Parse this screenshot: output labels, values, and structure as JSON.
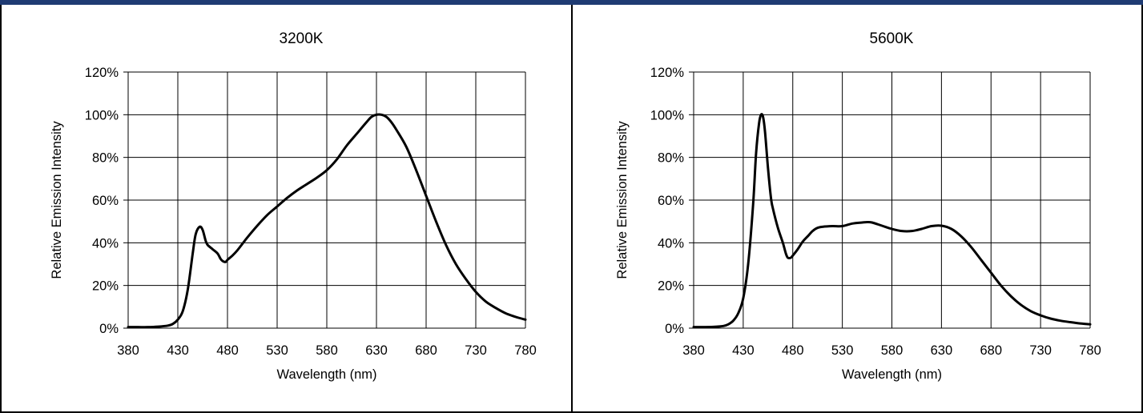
{
  "chart_data": [
    {
      "type": "line",
      "title": "3200K",
      "xlabel": "Wavelength (nm)",
      "ylabel": "Relative Emission Intensity",
      "xlim": [
        380,
        780
      ],
      "ylim": [
        0,
        1.2
      ],
      "xticks": [
        "380",
        "430",
        "480",
        "530",
        "580",
        "630",
        "680",
        "730",
        "780"
      ],
      "yticks": [
        "0%",
        "20%",
        "40%",
        "60%",
        "80%",
        "100%",
        "120%"
      ],
      "grid": true,
      "series": [
        {
          "x": [
            380,
            390,
            400,
            410,
            420,
            425,
            430,
            435,
            440,
            445,
            448,
            452,
            455,
            458,
            460,
            465,
            470,
            473,
            475,
            478,
            480,
            485,
            490,
            495,
            500,
            510,
            520,
            530,
            540,
            550,
            560,
            570,
            580,
            590,
            600,
            610,
            620,
            625,
            630,
            635,
            640,
            645,
            650,
            660,
            670,
            680,
            690,
            700,
            710,
            720,
            730,
            740,
            750,
            760,
            770,
            780
          ],
          "y": [
            0.005,
            0.005,
            0.005,
            0.007,
            0.012,
            0.02,
            0.04,
            0.08,
            0.18,
            0.35,
            0.44,
            0.475,
            0.46,
            0.41,
            0.39,
            0.37,
            0.35,
            0.325,
            0.315,
            0.31,
            0.32,
            0.34,
            0.365,
            0.395,
            0.425,
            0.48,
            0.53,
            0.57,
            0.61,
            0.645,
            0.675,
            0.705,
            0.74,
            0.79,
            0.855,
            0.91,
            0.965,
            0.99,
            1.0,
            1.0,
            0.99,
            0.965,
            0.93,
            0.85,
            0.74,
            0.62,
            0.5,
            0.39,
            0.3,
            0.23,
            0.17,
            0.125,
            0.095,
            0.07,
            0.053,
            0.04
          ]
        }
      ]
    },
    {
      "type": "line",
      "title": "5600K",
      "xlabel": "Wavelength (nm)",
      "ylabel": "Relative Emission Intensity",
      "xlim": [
        380,
        780
      ],
      "ylim": [
        0,
        1.2
      ],
      "xticks": [
        "380",
        "430",
        "480",
        "530",
        "580",
        "630",
        "680",
        "730",
        "780"
      ],
      "yticks": [
        "0%",
        "20%",
        "40%",
        "60%",
        "80%",
        "100%",
        "120%"
      ],
      "grid": true,
      "series": [
        {
          "x": [
            380,
            390,
            400,
            410,
            415,
            420,
            425,
            430,
            435,
            440,
            443,
            446,
            448,
            450,
            452,
            455,
            458,
            460,
            465,
            470,
            473,
            475,
            478,
            480,
            485,
            490,
            495,
            500,
            505,
            510,
            520,
            530,
            540,
            550,
            555,
            560,
            570,
            580,
            590,
            600,
            610,
            620,
            630,
            640,
            650,
            660,
            670,
            680,
            690,
            700,
            710,
            720,
            730,
            740,
            750,
            760,
            770,
            780
          ],
          "y": [
            0.005,
            0.005,
            0.006,
            0.01,
            0.018,
            0.035,
            0.07,
            0.14,
            0.3,
            0.58,
            0.82,
            0.96,
            1.0,
            0.99,
            0.92,
            0.75,
            0.61,
            0.56,
            0.47,
            0.4,
            0.35,
            0.33,
            0.33,
            0.34,
            0.37,
            0.405,
            0.43,
            0.455,
            0.47,
            0.475,
            0.478,
            0.478,
            0.49,
            0.495,
            0.497,
            0.495,
            0.48,
            0.465,
            0.455,
            0.455,
            0.465,
            0.478,
            0.48,
            0.465,
            0.43,
            0.38,
            0.32,
            0.26,
            0.2,
            0.15,
            0.11,
            0.08,
            0.06,
            0.045,
            0.035,
            0.028,
            0.022,
            0.018
          ]
        }
      ]
    }
  ]
}
